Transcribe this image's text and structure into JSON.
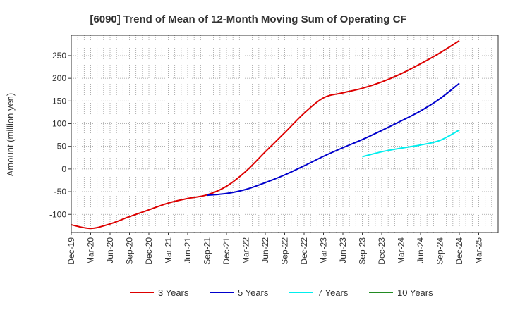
{
  "chart_data": {
    "type": "line",
    "title": "[6090]  Trend of Mean of 12-Month Moving Sum of Operating CF",
    "xlabel": "",
    "ylabel": "Amount (million yen)",
    "ylim": [
      -140,
      295
    ],
    "yticks": [
      250,
      200,
      150,
      100,
      50,
      0,
      -50,
      -100
    ],
    "xlim": [
      0,
      66
    ],
    "x_labels": [
      "Dec-19",
      "Mar-20",
      "Jun-20",
      "Sep-20",
      "Dec-20",
      "Mar-21",
      "Jun-21",
      "Sep-21",
      "Dec-21",
      "Mar-22",
      "Jun-22",
      "Sep-22",
      "Dec-22",
      "Mar-23",
      "Jun-23",
      "Sep-23",
      "Dec-23",
      "Mar-24",
      "Jun-24",
      "Sep-24",
      "Dec-24",
      "Mar-25"
    ],
    "x_label_months": [
      0,
      3,
      6,
      9,
      12,
      15,
      18,
      21,
      24,
      27,
      30,
      33,
      36,
      39,
      42,
      45,
      48,
      51,
      54,
      57,
      60,
      63
    ],
    "grid": true,
    "legend_position": "bottom",
    "series": [
      {
        "name": "3 Years",
        "color": "#dd0000",
        "x": [
          0,
          3,
          6,
          9,
          12,
          15,
          18,
          21,
          24,
          27,
          30,
          33,
          36,
          39,
          42,
          45,
          48,
          51,
          54,
          57,
          60
        ],
        "values": [
          -123,
          -131,
          -121,
          -105,
          -90,
          -75,
          -65,
          -57,
          -38,
          -5,
          38,
          80,
          123,
          157,
          168,
          178,
          192,
          210,
          232,
          256,
          283
        ]
      },
      {
        "name": "5 Years",
        "color": "#0000cc",
        "x": [
          21,
          24,
          27,
          30,
          33,
          36,
          39,
          42,
          45,
          48,
          51,
          54,
          57,
          60
        ],
        "values": [
          -58,
          -54,
          -45,
          -30,
          -13,
          7,
          28,
          47,
          65,
          85,
          106,
          128,
          155,
          189
        ]
      },
      {
        "name": "7 Years",
        "color": "#00eeee",
        "x": [
          45,
          48,
          51,
          54,
          57,
          60
        ],
        "values": [
          27,
          38,
          46,
          53,
          63,
          86
        ]
      },
      {
        "name": "10 Years",
        "color": "#228b22",
        "x": [],
        "values": []
      }
    ]
  }
}
